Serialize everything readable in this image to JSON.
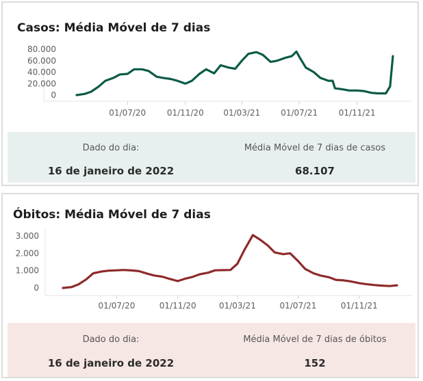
{
  "panels": {
    "cases": {
      "title": "Casos: Média Móvel de 7 dias",
      "day_label": "Dado do dia:",
      "day_value": "16 de janeiro de 2022",
      "metric_label": "Média Móvel de 7 dias de casos",
      "metric_value": "68.107"
    },
    "deaths": {
      "title": "Óbitos: Média Móvel de 7 dias",
      "day_label": "Dado do dia:",
      "day_value": "16 de janeiro de 2022",
      "metric_label": "Média Móvel de 7 dias de óbitos",
      "metric_value": "152"
    }
  },
  "colors": {
    "cases_line": "#0b5b47",
    "deaths_line": "#8e2a2a",
    "cases_box": "#e8f0ef",
    "deaths_box": "#f6e7e5"
  },
  "chart_data": [
    {
      "type": "line",
      "title": "Casos: Média Móvel de 7 dias",
      "xlabel": "",
      "ylabel": "",
      "x_ticks": [
        "01/07/20",
        "01/11/20",
        "01/03/21",
        "01/07/21",
        "01/11/21"
      ],
      "y_ticks": [
        0,
        20000,
        40000,
        60000,
        80000
      ],
      "y_tick_labels": [
        "0",
        "20.000",
        "40.000",
        "60.000",
        "80.000"
      ],
      "ylim": [
        0,
        80000
      ],
      "grid": false,
      "series": [
        {
          "x": [
            "2020-03-15",
            "2020-04-01",
            "2020-04-15",
            "2020-05-01",
            "2020-05-15",
            "2020-06-01",
            "2020-06-15",
            "2020-07-01",
            "2020-07-15",
            "2020-08-01",
            "2020-08-15",
            "2020-09-01",
            "2020-09-15",
            "2020-10-01",
            "2020-10-15",
            "2020-11-01",
            "2020-11-15",
            "2020-12-01",
            "2020-12-15",
            "2021-01-01",
            "2021-01-15",
            "2021-02-01",
            "2021-02-15",
            "2021-03-01",
            "2021-03-15",
            "2021-04-01",
            "2021-04-15",
            "2021-05-01",
            "2021-05-15",
            "2021-06-01",
            "2021-06-15",
            "2021-06-25",
            "2021-07-01",
            "2021-07-15",
            "2021-08-01",
            "2021-08-15",
            "2021-09-01",
            "2021-09-10",
            "2021-09-15",
            "2021-10-01",
            "2021-10-15",
            "2021-11-01",
            "2021-11-15",
            "2021-12-01",
            "2021-12-15",
            "2022-01-01",
            "2022-01-10",
            "2022-01-16"
          ],
          "y": [
            0,
            2000,
            6000,
            15000,
            25000,
            30000,
            36000,
            37000,
            45000,
            45000,
            42000,
            32000,
            30000,
            28000,
            25000,
            20000,
            25000,
            37000,
            45000,
            38000,
            52000,
            48000,
            46000,
            60000,
            72000,
            75000,
            70000,
            58000,
            60000,
            65000,
            68000,
            76000,
            67000,
            48000,
            40000,
            30000,
            25000,
            25000,
            12000,
            10000,
            8000,
            8000,
            7000,
            4000,
            3000,
            3000,
            15000,
            68000
          ]
        }
      ]
    },
    {
      "type": "line",
      "title": "Óbitos: Média Móvel de 7 dias",
      "xlabel": "",
      "ylabel": "",
      "x_ticks": [
        "01/07/20",
        "01/11/20",
        "01/03/21",
        "01/07/21",
        "01/11/21"
      ],
      "y_ticks": [
        0,
        1000,
        2000,
        3000
      ],
      "y_tick_labels": [
        "0",
        "1.000",
        "2.000",
        "3.000"
      ],
      "ylim": [
        0,
        3000
      ],
      "grid": false,
      "series": [
        {
          "x": [
            "2020-03-15",
            "2020-04-01",
            "2020-04-15",
            "2020-05-01",
            "2020-05-15",
            "2020-06-01",
            "2020-06-15",
            "2020-07-01",
            "2020-07-15",
            "2020-08-01",
            "2020-08-15",
            "2020-09-01",
            "2020-09-15",
            "2020-10-01",
            "2020-10-15",
            "2020-11-01",
            "2020-11-15",
            "2020-12-01",
            "2020-12-15",
            "2021-01-01",
            "2021-01-15",
            "2021-02-01",
            "2021-02-15",
            "2021-03-01",
            "2021-03-15",
            "2021-04-01",
            "2021-04-15",
            "2021-05-01",
            "2021-05-15",
            "2021-06-01",
            "2021-06-15",
            "2021-07-01",
            "2021-07-15",
            "2021-08-01",
            "2021-08-15",
            "2021-09-01",
            "2021-09-15",
            "2021-10-01",
            "2021-10-15",
            "2021-11-01",
            "2021-11-15",
            "2021-12-01",
            "2021-12-15",
            "2022-01-01",
            "2022-01-16"
          ],
          "y": [
            0,
            50,
            200,
            500,
            850,
            950,
            1000,
            1020,
            1040,
            1010,
            970,
            820,
            720,
            650,
            530,
            400,
            530,
            640,
            790,
            880,
            1020,
            1030,
            1040,
            1400,
            2200,
            3050,
            2800,
            2450,
            2050,
            1950,
            2000,
            1550,
            1100,
            850,
            720,
            620,
            470,
            440,
            380,
            280,
            220,
            170,
            140,
            110,
            152
          ]
        }
      ]
    }
  ]
}
